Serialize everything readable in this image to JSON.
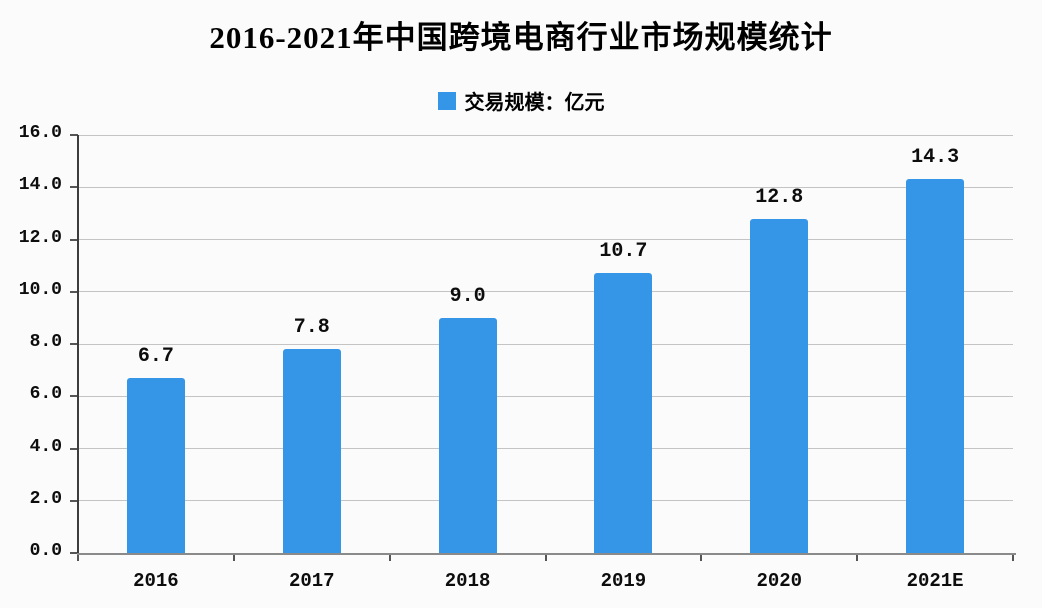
{
  "title": "2016-2021年中国跨境电商行业市场规模统计",
  "legend": {
    "label": "交易规模：亿元",
    "swatch_color": "#3596e8"
  },
  "chart_data": {
    "type": "bar",
    "title": "2016-2021年中国跨境电商行业市场规模统计",
    "categories": [
      "2016",
      "2017",
      "2018",
      "2019",
      "2020",
      "2021E"
    ],
    "values": [
      6.7,
      7.8,
      9.0,
      10.7,
      12.8,
      14.3
    ],
    "data_labels": [
      "6.7",
      "7.8",
      "9.0",
      "10.7",
      "12.8",
      "14.3"
    ],
    "series_name": "交易规模：亿元",
    "xlabel": "",
    "ylabel": "",
    "ylim": [
      0,
      16
    ],
    "ytick_step": 2,
    "ytick_labels": [
      "0.0",
      "2.0",
      "4.0",
      "6.0",
      "8.0",
      "10.0",
      "12.0",
      "14.0",
      "16.0"
    ],
    "grid": true,
    "legend_position": "top-center",
    "bar_color": "#3596e8",
    "gridline_color": "#c4c4c4",
    "y_axis_color": "#3c3c3c",
    "x_axis_color": "#8a8a8a",
    "tick_color": "#555555",
    "background_color": "#fbfbfb"
  }
}
